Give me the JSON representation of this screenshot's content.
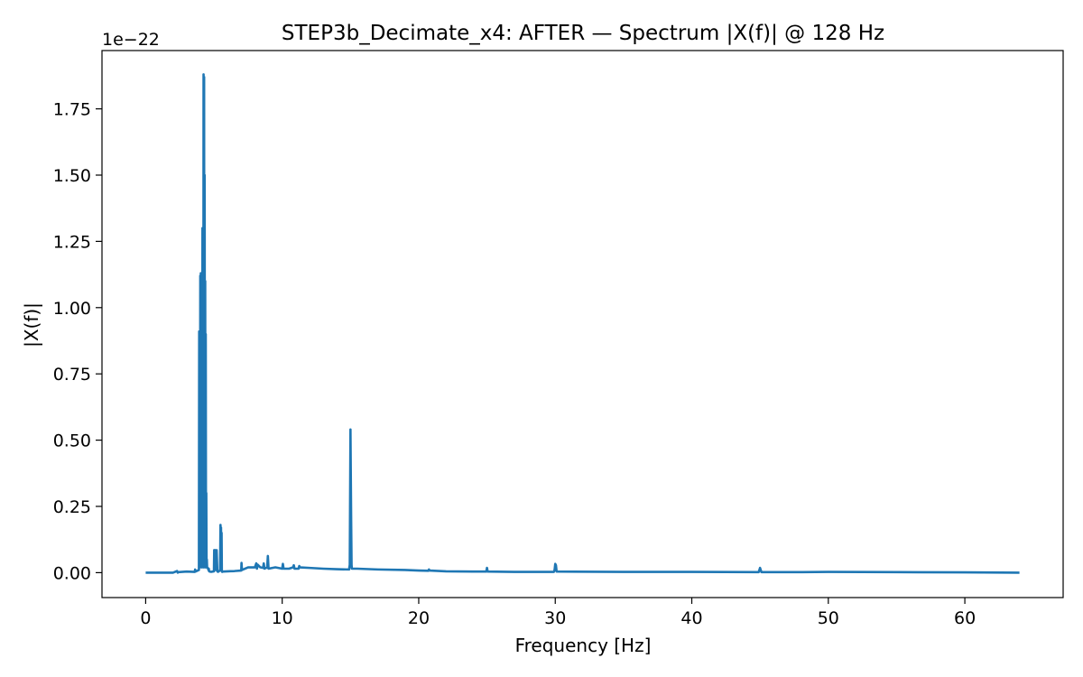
{
  "chart_data": {
    "type": "line",
    "title": "STEP3b_Decimate_x4: AFTER — Spectrum |X(f)| @ 128 Hz",
    "xlabel": "Frequency [Hz]",
    "ylabel": "|X(f)|",
    "y_scale_label": "1e−22",
    "xlim": [
      -3.2,
      67.2
    ],
    "ylim": [
      -0.094,
      1.97
    ],
    "x_ticks": [
      0,
      10,
      20,
      30,
      40,
      50,
      60
    ],
    "x_tick_labels": [
      "0",
      "10",
      "20",
      "30",
      "40",
      "50",
      "60"
    ],
    "y_ticks": [
      0,
      0.25,
      0.5,
      0.75,
      1.0,
      1.25,
      1.5,
      1.75
    ],
    "y_tick_labels": [
      "0.00",
      "0.25",
      "0.50",
      "0.75",
      "1.00",
      "1.25",
      "1.50",
      "1.75"
    ],
    "grid": false,
    "legend": "none",
    "colors": {
      "line": "#1f77b4"
    },
    "series": [
      {
        "x": [
          0,
          2.0,
          2.3,
          2.35,
          2.4,
          3.0,
          3.6,
          3.62,
          3.65,
          3.9,
          3.92,
          3.94,
          3.96,
          3.98,
          4.0,
          4.02,
          4.04,
          4.06,
          4.08,
          4.1,
          4.12,
          4.14,
          4.16,
          4.18,
          4.2,
          4.22,
          4.24,
          4.26,
          4.28,
          4.3,
          4.32,
          4.34,
          4.36,
          4.38,
          4.4,
          4.42,
          4.44,
          4.46,
          4.48,
          4.5,
          4.55,
          4.6,
          4.62,
          4.65,
          4.7,
          4.8,
          5.0,
          5.02,
          5.05,
          5.1,
          5.15,
          5.2,
          5.25,
          5.3,
          5.35,
          5.45,
          5.48,
          5.5,
          5.52,
          5.54,
          5.56,
          5.58,
          5.6,
          5.65,
          6.0,
          6.5,
          7.0,
          7.02,
          7.05,
          7.5,
          8.0,
          8.1,
          8.15,
          8.2,
          8.4,
          8.6,
          8.65,
          8.7,
          8.9,
          8.95,
          9.0,
          9.5,
          10.0,
          10.05,
          10.1,
          10.5,
          10.8,
          10.85,
          10.9,
          11.2,
          11.25,
          11.3,
          12.0,
          13.0,
          14.0,
          14.9,
          14.95,
          15.0,
          15.02,
          15.05,
          15.08,
          15.1,
          15.15,
          15.5,
          17.0,
          19.0,
          20.0,
          20.7,
          20.75,
          20.8,
          22.0,
          24.0,
          24.95,
          25.0,
          25.05,
          27.0,
          29.9,
          29.95,
          30.0,
          30.05,
          30.1,
          35.0,
          40.0,
          44.9,
          45.0,
          45.1,
          48.0,
          50.0,
          55.0,
          60.0,
          64.0
        ],
        "values": [
          0.0,
          0.0,
          0.006,
          0.0,
          0.002,
          0.004,
          0.003,
          0.012,
          0.004,
          0.01,
          0.91,
          0.05,
          0.8,
          0.02,
          1.12,
          0.08,
          1.13,
          0.04,
          0.95,
          0.02,
          1.0,
          0.1,
          1.3,
          0.05,
          1.2,
          0.02,
          1.88,
          0.3,
          1.87,
          0.05,
          1.5,
          0.02,
          1.1,
          0.1,
          0.9,
          0.02,
          0.3,
          0.02,
          0.05,
          0.02,
          0.018,
          0.01,
          0.015,
          0.005,
          0.004,
          0.003,
          0.005,
          0.085,
          0.01,
          0.085,
          0.01,
          0.085,
          0.005,
          0.003,
          0.005,
          0.008,
          0.18,
          0.01,
          0.17,
          0.01,
          0.15,
          0.005,
          0.003,
          0.004,
          0.005,
          0.006,
          0.008,
          0.037,
          0.01,
          0.02,
          0.02,
          0.035,
          0.015,
          0.03,
          0.02,
          0.018,
          0.035,
          0.015,
          0.02,
          0.063,
          0.015,
          0.02,
          0.015,
          0.033,
          0.015,
          0.015,
          0.02,
          0.028,
          0.015,
          0.015,
          0.025,
          0.02,
          0.018,
          0.015,
          0.013,
          0.012,
          0.03,
          0.54,
          0.4,
          0.2,
          0.03,
          0.015,
          0.015,
          0.015,
          0.012,
          0.01,
          0.008,
          0.007,
          0.012,
          0.008,
          0.005,
          0.004,
          0.004,
          0.018,
          0.004,
          0.003,
          0.003,
          0.01,
          0.033,
          0.028,
          0.004,
          0.003,
          0.003,
          0.002,
          0.018,
          0.002,
          0.002,
          0.003,
          0.002,
          0.001,
          0.0
        ]
      }
    ]
  }
}
